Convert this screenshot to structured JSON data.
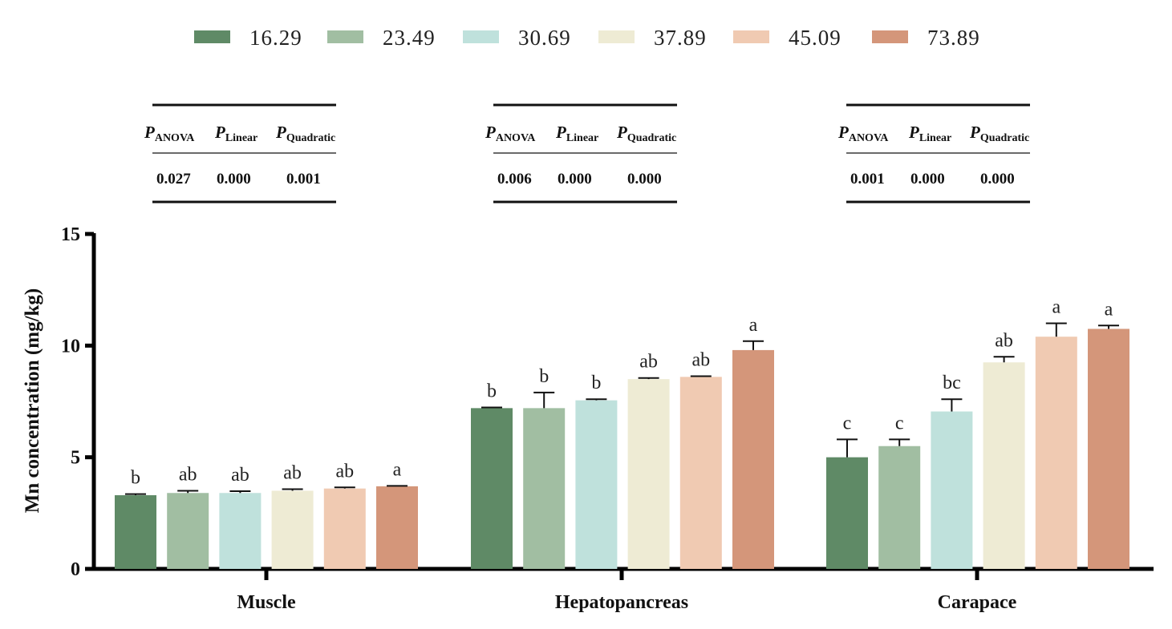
{
  "chart_data": {
    "type": "bar",
    "title": "",
    "xlabel": "",
    "ylabel": "Mn concentration (mg/kg)",
    "ylim": [
      0,
      15
    ],
    "yticks": [
      0,
      5,
      10,
      15
    ],
    "grid": false,
    "legend_position": "top",
    "categories": [
      "Muscle",
      "Hepatopancreas",
      "Carapace"
    ],
    "series": [
      {
        "name": "16.29",
        "color": "#5f8a66",
        "values": [
          3.3,
          7.2,
          5.0
        ],
        "errors": [
          0.05,
          0.03,
          0.8
        ],
        "labels": [
          "b",
          "b",
          "c"
        ]
      },
      {
        "name": "23.49",
        "color": "#a1bea2",
        "values": [
          3.4,
          7.2,
          5.5
        ],
        "errors": [
          0.1,
          0.7,
          0.3
        ],
        "labels": [
          "ab",
          "b",
          "c"
        ]
      },
      {
        "name": "30.69",
        "color": "#bfe1dc",
        "values": [
          3.4,
          7.55,
          7.05
        ],
        "errors": [
          0.08,
          0.05,
          0.55
        ],
        "labels": [
          "ab",
          "b",
          "bc"
        ]
      },
      {
        "name": "37.89",
        "color": "#eeebd4",
        "values": [
          3.5,
          8.5,
          9.25
        ],
        "errors": [
          0.07,
          0.05,
          0.25
        ],
        "labels": [
          "ab",
          "ab",
          "ab"
        ]
      },
      {
        "name": "45.09",
        "color": "#f0cab2",
        "values": [
          3.6,
          8.6,
          10.4
        ],
        "errors": [
          0.05,
          0.03,
          0.6
        ],
        "labels": [
          "ab",
          "ab",
          "a"
        ]
      },
      {
        "name": "73.89",
        "color": "#d4967a",
        "values": [
          3.7,
          9.8,
          10.75
        ],
        "errors": [
          0.02,
          0.4,
          0.15
        ],
        "labels": [
          "a",
          "a",
          "a"
        ]
      }
    ],
    "stats_tables": [
      {
        "group": "Muscle",
        "headers": [
          {
            "p": "P",
            "sub": "ANOVA"
          },
          {
            "p": "P",
            "sub": "Linear"
          },
          {
            "p": "P",
            "sub": "Quadratic"
          }
        ],
        "values": [
          "0.027",
          "0.000",
          "0.001"
        ]
      },
      {
        "group": "Hepatopancreas",
        "headers": [
          {
            "p": "P",
            "sub": "ANOVA"
          },
          {
            "p": "P",
            "sub": "Linear"
          },
          {
            "p": "P",
            "sub": "Quadratic"
          }
        ],
        "values": [
          "0.006",
          "0.000",
          "0.000"
        ]
      },
      {
        "group": "Carapace",
        "headers": [
          {
            "p": "P",
            "sub": "ANOVA"
          },
          {
            "p": "P",
            "sub": "Linear"
          },
          {
            "p": "P",
            "sub": "Quadratic"
          }
        ],
        "values": [
          "0.001",
          "0.000",
          "0.000"
        ]
      }
    ]
  }
}
